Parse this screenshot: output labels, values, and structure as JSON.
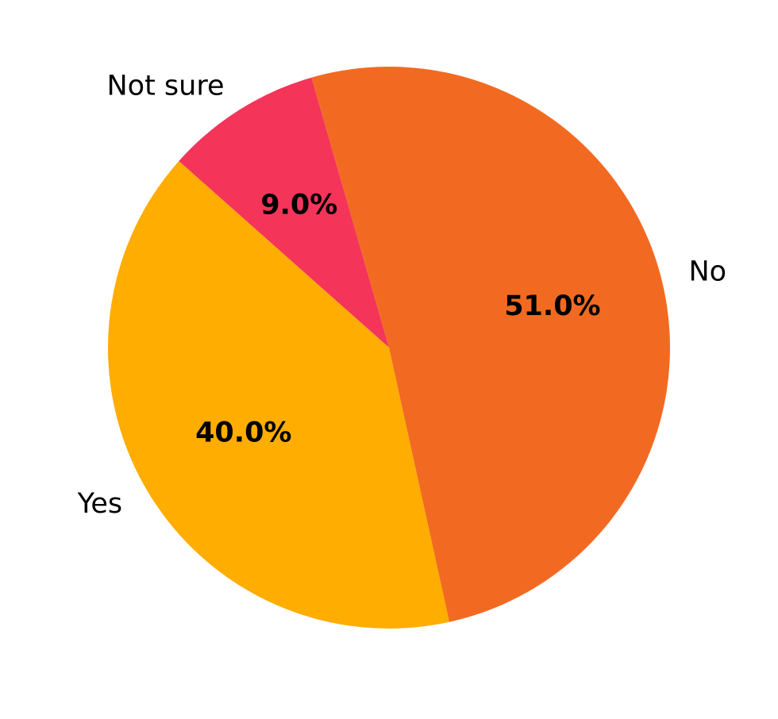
{
  "chart_data": {
    "type": "pie",
    "title": "",
    "start_angle_deg": 106,
    "direction": "counterclockwise",
    "slices": [
      {
        "label": "Not sure",
        "value": 9.0,
        "pct_label": "9.0%",
        "color": "#f5345a"
      },
      {
        "label": "Yes",
        "value": 40.0,
        "pct_label": "40.0%",
        "color": "#ffad00"
      },
      {
        "label": "No",
        "value": 51.0,
        "pct_label": "51.0%",
        "color": "#f26a22"
      }
    ]
  }
}
